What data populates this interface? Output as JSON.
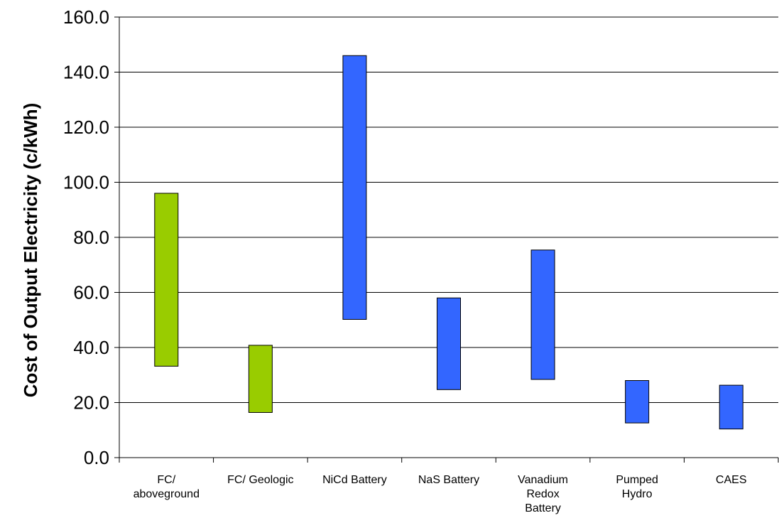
{
  "chart_data": {
    "type": "bar",
    "subtype": "floating-range",
    "title": "",
    "xlabel": "",
    "ylabel": "Cost of Output Electricity (c/kWh)",
    "ylim": [
      0,
      160
    ],
    "y_ticks": [
      "0.0",
      "20.0",
      "40.0",
      "60.0",
      "80.0",
      "100.0",
      "120.0",
      "140.0",
      "160.0"
    ],
    "grid": true,
    "categories": [
      [
        "FC/",
        "aboveground"
      ],
      [
        "FC/ Geologic"
      ],
      [
        "NiCd Battery"
      ],
      [
        "NaS Battery"
      ],
      [
        "Vanadium",
        "Redox",
        "Battery"
      ],
      [
        "Pumped",
        "Hydro"
      ],
      [
        "CAES"
      ]
    ],
    "low": [
      33.2,
      16.4,
      50.2,
      24.7,
      28.4,
      12.6,
      10.4
    ],
    "high": [
      96.0,
      40.8,
      146.0,
      58.0,
      75.4,
      28.0,
      26.3
    ],
    "colors": [
      "#99cc00",
      "#99cc00",
      "#3366ff",
      "#3366ff",
      "#3366ff",
      "#3366ff",
      "#3366ff"
    ]
  }
}
